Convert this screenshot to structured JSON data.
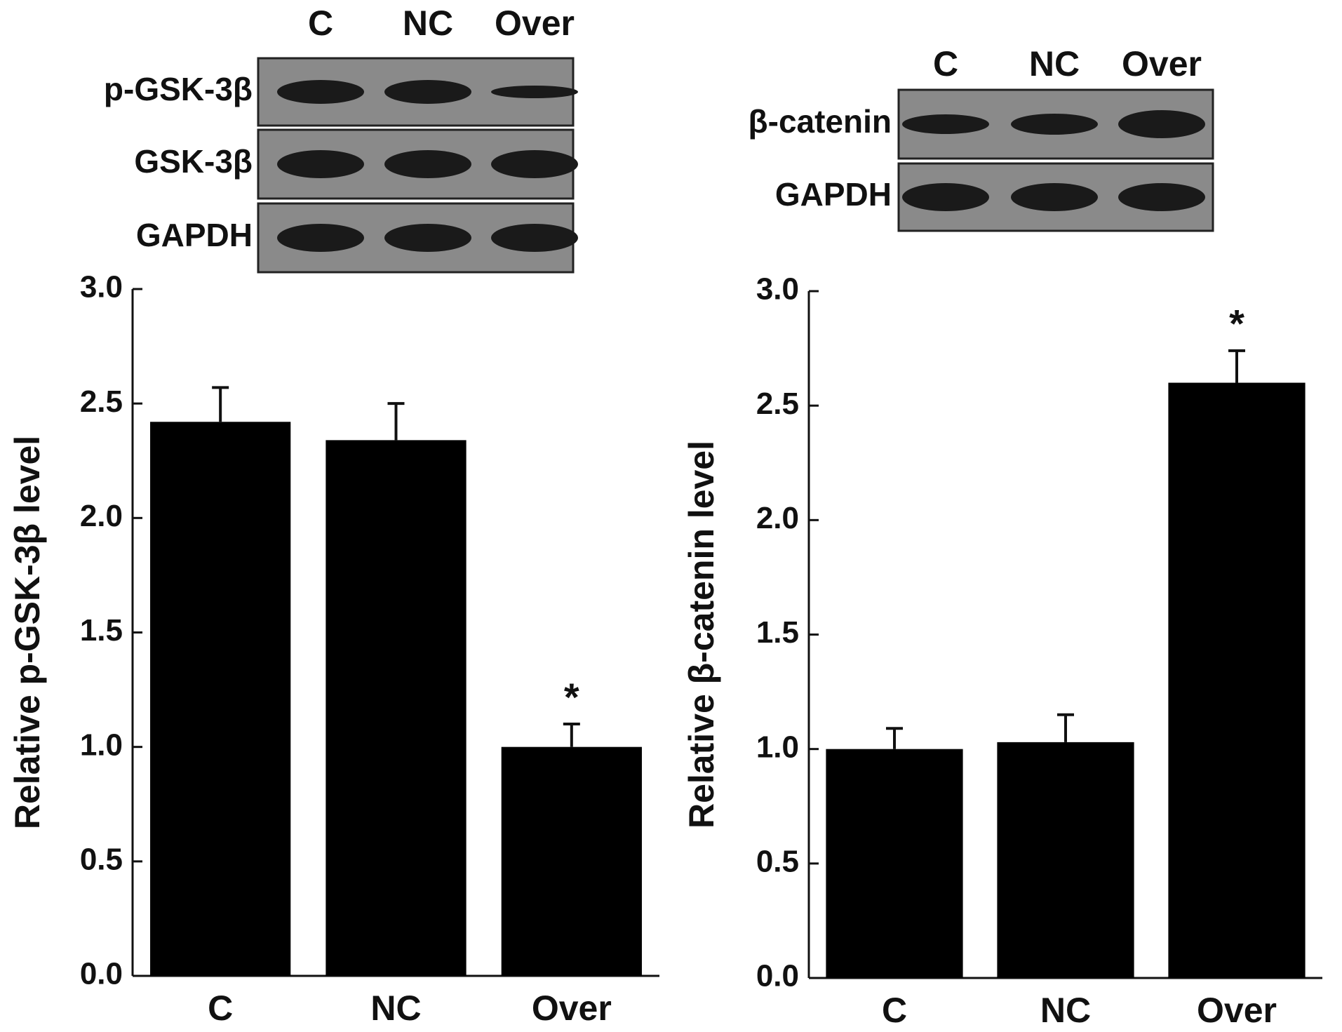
{
  "chart_data": [
    {
      "type": "bar",
      "y_label": "Relative p-GSK-3β level",
      "categories": [
        "C",
        "NC",
        "Over"
      ],
      "values": [
        2.42,
        2.34,
        1.0
      ],
      "errors": [
        0.15,
        0.16,
        0.1
      ],
      "color": "#000000",
      "annotation": "*",
      "annotation_category": "Over",
      "ylim": [
        0,
        3
      ],
      "yticks": [
        {
          "value": 0,
          "label": "0.0"
        },
        0.5,
        {
          "value": 1,
          "label": "1.0"
        },
        1.5,
        {
          "value": 2,
          "label": "2.0"
        },
        2.5,
        {
          "value": 3,
          "label": "3.0"
        }
      ],
      "blot_lanes": [
        "C",
        "NC",
        "Over"
      ],
      "blot_rows": [
        "p-GSK-3β",
        "GSK-3β",
        "GAPDH"
      ]
    },
    {
      "type": "bar",
      "y_label": "Relative β-catenin level",
      "categories": [
        "C",
        "NC",
        "Over"
      ],
      "values": [
        1.0,
        1.03,
        2.6
      ],
      "errors": [
        0.09,
        0.12,
        0.14
      ],
      "color": "#000000",
      "annotation": "*",
      "annotation_category": "Over",
      "ylim": [
        0,
        3
      ],
      "yticks": [
        {
          "value": 0,
          "label": "0.0"
        },
        0.5,
        {
          "value": 1,
          "label": "1.0"
        },
        1.5,
        {
          "value": 2,
          "label": "2.0"
        },
        2.5,
        {
          "value": 3,
          "label": "3.0"
        }
      ],
      "blot_lanes": [
        "C",
        "NC",
        "Over"
      ],
      "blot_rows": [
        "β-catenin",
        "GAPDH"
      ]
    }
  ]
}
